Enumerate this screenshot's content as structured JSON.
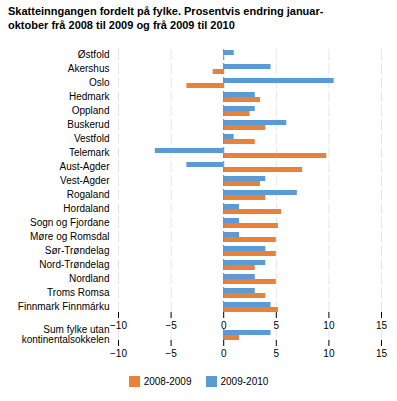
{
  "chart_data": {
    "type": "bar",
    "orientation": "horizontal",
    "title": "Skatteinngangen fordelt på fylke. Prosentvis endring januar-\noktober frå 2008 til 2009 og frå 2009 til 2010",
    "categories": [
      "Østfold",
      "Akershus",
      "Oslo",
      "Hedmark",
      "Oppland",
      "Buskerud",
      "Vestfold",
      "Telemark",
      "Aust-Agder",
      "Vest-Agder",
      "Rogaland",
      "Hordaland",
      "Sogn og Fjordane",
      "Møre og Romsdal",
      "Sør-Trøndelag",
      "Nord-Trøndelag",
      "Nordland",
      "Troms Romsa",
      "Finnmark Finnmárku",
      null,
      "Sum fylke utan\nkontinentalsokkelen"
    ],
    "series": [
      {
        "name": "2008-2009",
        "color": "#e8823a",
        "values": [
          0.0,
          -1.0,
          -3.5,
          3.5,
          2.5,
          4.0,
          3.0,
          9.8,
          7.5,
          3.5,
          4.0,
          5.5,
          5.2,
          5.0,
          5.0,
          3.0,
          5.0,
          4.0,
          5.2,
          null,
          1.5
        ]
      },
      {
        "name": "2009-2010",
        "color": "#5b9bd5",
        "values": [
          1.0,
          4.5,
          10.5,
          3.0,
          3.0,
          6.0,
          1.0,
          -6.5,
          -3.5,
          4.0,
          7.0,
          1.5,
          1.5,
          1.5,
          4.0,
          4.0,
          3.0,
          3.0,
          4.5,
          null,
          4.5
        ]
      }
    ],
    "xlim": [
      -10,
      15
    ],
    "xticks": [
      -10,
      -5,
      0,
      5,
      10,
      15
    ],
    "grid": true,
    "legend": "bottom"
  }
}
